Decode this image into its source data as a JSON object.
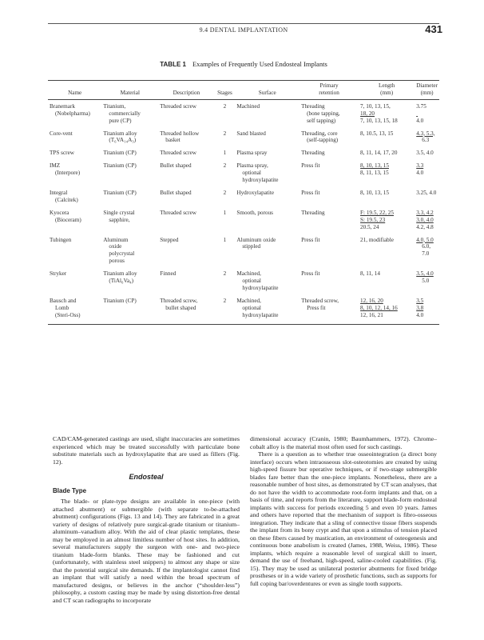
{
  "header": {
    "running_title": "9.4  DENTAL IMPLANTATION",
    "page_number": "431"
  },
  "table": {
    "label": "TABLE 1",
    "title": "Examples of Frequently Used Endosteal Implants",
    "columns": [
      "Name",
      "Material",
      "Description",
      "Stages",
      "Surface",
      "Primary retention",
      "Length (mm)",
      "Diameter (mm)"
    ],
    "rows": [
      {
        "name": [
          "Branemark",
          "(Nobelpharma)"
        ],
        "material": [
          "Titanium,",
          "commercially",
          "pure (CP)"
        ],
        "description": [
          "Threaded screw"
        ],
        "stages": "2",
        "surface": [
          "Machined"
        ],
        "retention": [
          "Threading",
          "(bone tapping,",
          "self tapping)"
        ],
        "length": [
          "7, 10, 13, 15,",
          "18, 20",
          "7, 10, 13, 15, 18"
        ],
        "diameter": [
          "3.75",
          "",
          "4.0"
        ]
      },
      {
        "name": [
          "Core-vent"
        ],
        "material": [
          "Titanium alloy",
          "(T₆VA₁₄A₃)"
        ],
        "description": [
          "Threaded hollow",
          "basket"
        ],
        "stages": "2",
        "surface": [
          "Sand blasted"
        ],
        "retention": [
          "Threading, core",
          "(self-tapping)"
        ],
        "length": [
          "8, 10.5, 13, 15"
        ],
        "diameter": [
          "4.3, 5.3,",
          "6.3"
        ]
      },
      {
        "name": [
          "TPS screw"
        ],
        "material": [
          "Titanium (CP)"
        ],
        "description": [
          "Threaded screw"
        ],
        "stages": "1",
        "surface": [
          "Plasma spray"
        ],
        "retention": [
          "Threading"
        ],
        "length": [
          "8, 11, 14, 17, 20"
        ],
        "diameter": [
          "3.5, 4.0"
        ]
      },
      {
        "name": [
          "IMZ",
          "(Interpore)"
        ],
        "material": [
          "Titanium (CP)"
        ],
        "description": [
          "Bullet shaped"
        ],
        "stages": "2",
        "surface": [
          "Plasma spray,",
          "optional",
          "hydroxylapatite"
        ],
        "retention": [
          "Press fit"
        ],
        "length": [
          "8, 10, 13, 15",
          "8, 11, 13, 15"
        ],
        "diameter": [
          "3.3",
          "4.0"
        ]
      },
      {
        "name": [
          "Integral",
          "(Calcitek)"
        ],
        "material": [
          "Titanium (CP)"
        ],
        "description": [
          "Bullet shaped"
        ],
        "stages": "2",
        "surface": [
          "Hydroxylapatite"
        ],
        "retention": [
          "Press fit"
        ],
        "length": [
          "8, 10, 13, 15"
        ],
        "diameter": [
          "3.25, 4.0"
        ]
      },
      {
        "name": [
          "Kyocera",
          "(Bioceram)"
        ],
        "material": [
          "Single crystal",
          "sapphire,"
        ],
        "description": [
          "Threaded screw"
        ],
        "stages": "1",
        "surface": [
          "Smooth, porous"
        ],
        "retention": [
          "Threading"
        ],
        "length": [
          "F: 19.5, 22, 25",
          "S: 19.5, 23",
          "20.5, 24"
        ],
        "diameter": [
          "3.3, 4.2",
          "3.0, 4.0",
          "4.2, 4.8"
        ]
      },
      {
        "name": [
          "Tubingen"
        ],
        "material": [
          "Aluminum",
          "oxide",
          "polycrystal",
          "porous"
        ],
        "description": [
          "Stepped"
        ],
        "stages": "1",
        "surface": [
          "Aluminum oxide",
          "stippled"
        ],
        "retention": [
          "Press fit"
        ],
        "length": [
          "21, modifiable"
        ],
        "diameter": [
          "4.0, 5.0",
          "6.0, 7.0"
        ]
      },
      {
        "name": [
          "Stryker"
        ],
        "material": [
          "Titanium alloy",
          "(TiAl₆Va₄)"
        ],
        "description": [
          "Finned"
        ],
        "stages": "2",
        "surface": [
          "Machined,",
          "optional",
          "hydroxylapatite"
        ],
        "retention": [
          "Press fit"
        ],
        "length": [
          "8, 11, 14"
        ],
        "diameter": [
          "3.5, 4.0",
          "5.0"
        ]
      },
      {
        "name": [
          "Bausch and",
          "Lomb",
          "(Steri-Oss)"
        ],
        "material": [
          "Titanium (CP)"
        ],
        "description": [
          "Threaded screw,",
          "bullet shaped"
        ],
        "stages": "2",
        "surface": [
          "Machined,",
          "optional",
          "hydroxylapatite"
        ],
        "retention": [
          "Threaded screw,",
          "Press fit"
        ],
        "length": [
          "12, 16, 20",
          "8, 10, 12, 14, 16",
          "12, 16, 21"
        ],
        "diameter": [
          "3.5",
          "3.8",
          "4.0"
        ]
      }
    ]
  },
  "body": {
    "left_p1": "CAD/CAM-generated castings are used, slight inaccuracies are sometimes experienced which may be treated successfully with particulate bone substitute materials such as hydroxylapatite that are used as fillers (Fig. 12).",
    "section_heading": "Endosteal",
    "subsection_heading": "Blade Type",
    "left_p2": "The blade- or plate-type designs are available in one-piece (with attached abutment) or submergible (with separate to-be-attached abutment) configurations (Figs. 13 and 14). They are fabricated in a great variety of designs of relatively pure surgical-grade titanium or titanium–aluminum–vanadium alloy. With the aid of clear plastic templates, these may be employed in an almost limitless number of host sites. In addition, several manufacturers supply the surgeon with one- and two-piece titanium blade-form blanks. These may be fashioned and cut (unfortunately, with stainless steel snippers) to almost any shape or size that the potential surgical site demands. If the implantologist cannot find an implant that will satisfy a need within the broad spectrum of manufactured designs, or believes in the anchor (“shoulder-less”) philosophy, a custom casting may be made by using distortion-free dental and CT scan radiographs to incorporate",
    "right_p1": "dimensional accuracy (Cranin, 1980; Baumhammers, 1972). Chrome–cobalt alloy is the material most often used for such castings.",
    "right_p2": "There is a question as to whether true osseointegration (a direct bony interface) occurs when intraosseous slot-osteotomies are created by using high-speed fissure bur operative techniques, or if two-stage submergible blades fare better than the one-piece implants. Nonetheless, there are a reasonable number of host sites, as demonstrated by CT scan analyses, that do not have the width to accommodate root-form implants and that, on a basis of time, and reports from the literature, support blade-form endosteal implants with success for periods exceeding 5 and even 10 years. James and others have reported that the mechanism of support is fibro-osseous integration. They indicate that a sling of connective tissue fibers suspends the implant from its bony crypt and that upon a stimulus of tension placed on these fibers caused by mastication, an environment of osteogenesis and continuous bone anabolism is created (James, 1988, Weiss, 1986). These implants, which require a reasonable level of surgical skill to insert, demand the use of freehand, high-speed, saline-cooled capabilities. (Fig. 15). They may be used as unilateral posterior abutments for fixed bridge prostheses or in a wide variety of prosthetic functions, such as supports for full coping bar/overdentures or even as single tooth supports."
  }
}
